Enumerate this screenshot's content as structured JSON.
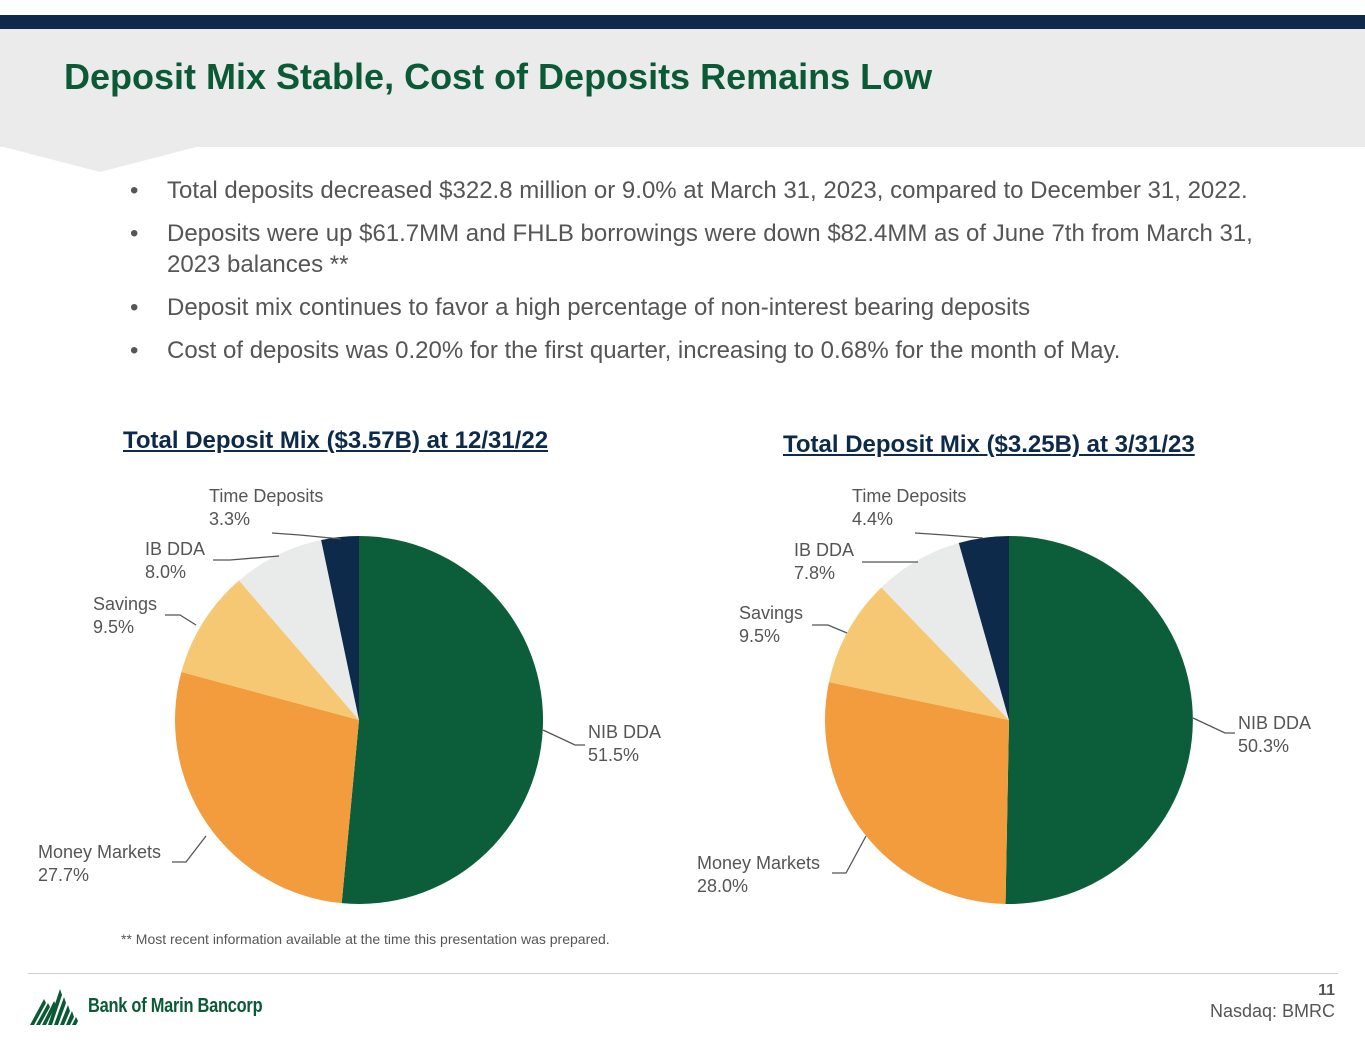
{
  "slide": {
    "title": "Deposit Mix Stable, Cost of Deposits Remains Low",
    "page_number": "11",
    "ticker": "Nasdaq: BMRC",
    "footnote": "** Most recent information available at the time this presentation was prepared.",
    "company": "Bank of Marin Bancorp"
  },
  "bullets": [
    "Total deposits decreased $322.8 million or 9.0% at March 31, 2023, compared to December 31, 2022.",
    "Deposits were up $61.7MM and FHLB borrowings were down $82.4MM as of June 7th from March 31, 2023 balances **",
    "Deposit mix continues to favor a high percentage of non-interest bearing deposits",
    "Cost of deposits was 0.20% for the first quarter, increasing to 0.68% for the month of May."
  ],
  "colors": {
    "title_green": "#0b5a36",
    "navy": "#0d2a4a",
    "text_gray": "#555555",
    "header_band": "#ebebeb"
  },
  "chart_data": [
    {
      "type": "pie",
      "title": "Total Deposit Mix ($3.57B) at 12/31/22",
      "categories": [
        "NIB DDA",
        "Money Markets",
        "Savings",
        "IB DDA",
        "Time Deposits"
      ],
      "values": [
        51.5,
        27.7,
        9.5,
        8.0,
        3.3
      ],
      "value_labels": [
        "51.5%",
        "27.7%",
        "9.5%",
        "8.0%",
        "3.3%"
      ],
      "colors": [
        "#0b5e39",
        "#f39c3d",
        "#f6c873",
        "#e9eaea",
        "#0d2a4a"
      ],
      "start": "12 o'clock",
      "direction": "clockwise"
    },
    {
      "type": "pie",
      "title": "Total Deposit Mix ($3.25B) at 3/31/23",
      "categories": [
        "NIB DDA",
        "Money Markets",
        "Savings",
        "IB DDA",
        "Time Deposits"
      ],
      "values": [
        50.3,
        28.0,
        9.5,
        7.8,
        4.4
      ],
      "value_labels": [
        "50.3%",
        "28.0%",
        "9.5%",
        "7.8%",
        "4.4%"
      ],
      "colors": [
        "#0b5e39",
        "#f39c3d",
        "#f6c873",
        "#e9eaea",
        "#0d2a4a"
      ],
      "start": "12 o'clock",
      "direction": "clockwise"
    }
  ]
}
